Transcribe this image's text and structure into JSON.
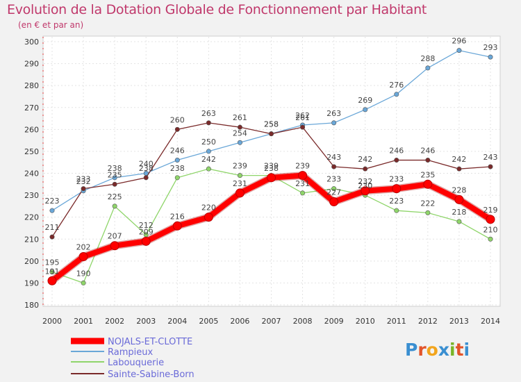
{
  "title": "Evolution de la Dotation Globale de Fonctionnement par Habitant",
  "subtitle": "(en € et par an)",
  "logo": {
    "text": "Proxiti",
    "letter_colors": [
      "#3a8fd1",
      "#e2542a",
      "#f2a51d",
      "#3a8fd1",
      "#7ab428",
      "#e2542a",
      "#3a8fd1"
    ]
  },
  "chart_data": {
    "type": "line",
    "x": [
      "2000",
      "2001",
      "2002",
      "2003",
      "2004",
      "2005",
      "2006",
      "2007",
      "2008",
      "2009",
      "2010",
      "2011",
      "2012",
      "2013",
      "2014"
    ],
    "ylim": [
      180,
      300
    ],
    "yticks": [
      180,
      190,
      200,
      210,
      220,
      230,
      240,
      250,
      260,
      270,
      280,
      290,
      300
    ],
    "grid": true,
    "legend_placement": "bottom-left",
    "series": [
      {
        "name": "NOJALS-ET-CLOTTE",
        "color": "#ff0000",
        "emphasis": true,
        "values": [
          191,
          202,
          207,
          209,
          216,
          220,
          231,
          238,
          239,
          227,
          232,
          233,
          235,
          228,
          219
        ]
      },
      {
        "name": "Rampieux",
        "color": "#6aa7d8",
        "values": [
          223,
          232,
          238,
          240,
          246,
          250,
          254,
          258,
          262,
          263,
          269,
          276,
          288,
          296,
          293
        ]
      },
      {
        "name": "Labouquerie",
        "color": "#8fd56a",
        "values": [
          195,
          190,
          225,
          212,
          238,
          242,
          239,
          239,
          231,
          233,
          230,
          223,
          222,
          218,
          210
        ]
      },
      {
        "name": "Sainte-Sabine-Born",
        "color": "#7a2a2a",
        "values": [
          211,
          233,
          235,
          238,
          260,
          263,
          261,
          258,
          261,
          243,
          242,
          246,
          246,
          242,
          243
        ]
      }
    ]
  }
}
